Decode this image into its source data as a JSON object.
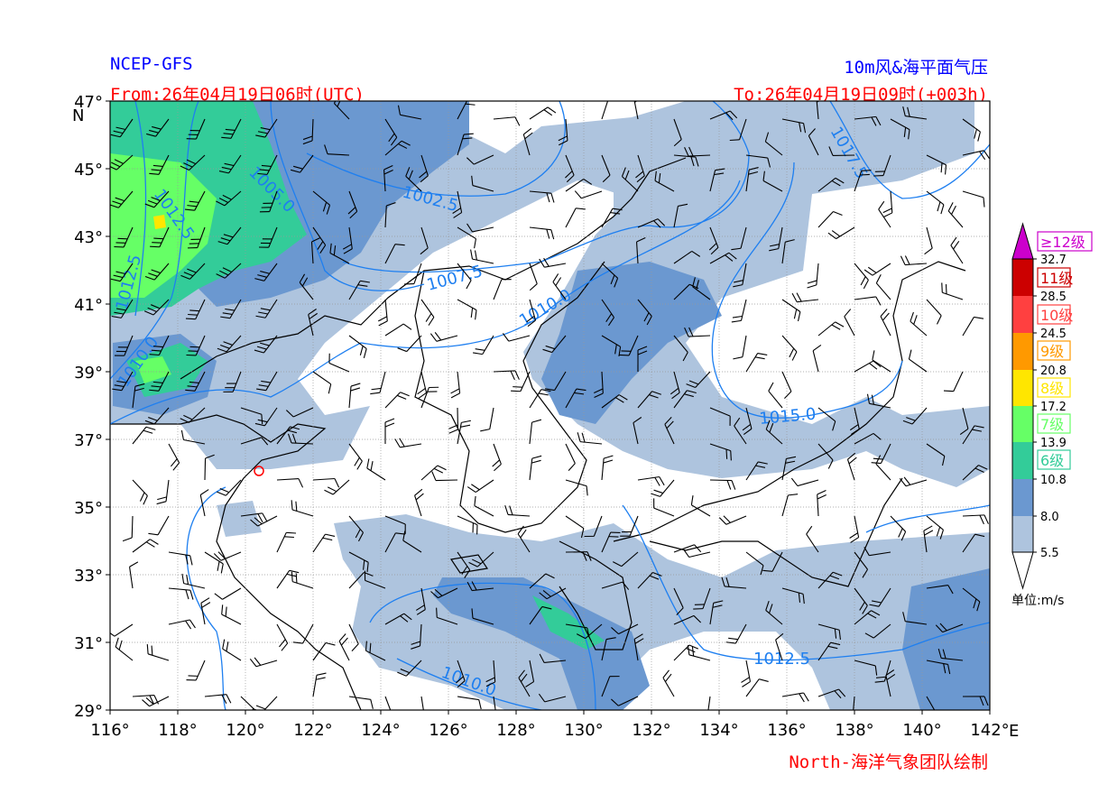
{
  "header": {
    "model": "NCEP-GFS",
    "product": "10m风&海平面气压",
    "from": "From:26年04月19日06时(UTC)",
    "to": "To:26年04月19日09时(+003h)"
  },
  "footer": {
    "credit": "North-海洋气象团队绘制"
  },
  "map": {
    "lon_range": [
      116,
      142
    ],
    "lat_range": [
      29,
      47
    ],
    "lon_ticks": [
      "116°",
      "118°",
      "120°",
      "122°",
      "124°",
      "126°",
      "128°",
      "130°",
      "132°",
      "134°",
      "136°",
      "138°",
      "140°",
      "142°"
    ],
    "lat_ticks": [
      "47°",
      "45°",
      "43°",
      "41°",
      "39°",
      "37°",
      "35°",
      "33°",
      "31°",
      "29°"
    ],
    "lon_unit": "E",
    "lat_unit": "N",
    "grid": true,
    "isobar_labels": [
      "1005.0",
      "1002.5",
      "1007.5",
      "1010.0",
      "1012.5",
      "1017.5",
      "1015.0",
      "1012.5",
      "1010.0",
      "1010.0",
      "1012.5"
    ],
    "marker_color": "#ff0000"
  },
  "colorbar": {
    "unit": "单位:m/s",
    "bounds": [
      "32.7",
      "28.5",
      "24.5",
      "20.8",
      "17.2",
      "13.9",
      "10.8",
      "8.0",
      "5.5"
    ],
    "colors": [
      "#cc00cc",
      "#cc0000",
      "#ff4040",
      "#ff9900",
      "#ffe600",
      "#66ff66",
      "#33cc99",
      "#6b98d0",
      "#aec4de"
    ],
    "levels": [
      {
        "label": "≥12级",
        "color": "#cc00cc"
      },
      {
        "label": "11级",
        "color": "#cc0000"
      },
      {
        "label": "10级",
        "color": "#ff4040"
      },
      {
        "label": "9级",
        "color": "#ff9900"
      },
      {
        "label": "8级",
        "color": "#ffe600"
      },
      {
        "label": "7级",
        "color": "#66ff66"
      },
      {
        "label": "6级",
        "color": "#33cc99"
      }
    ]
  }
}
